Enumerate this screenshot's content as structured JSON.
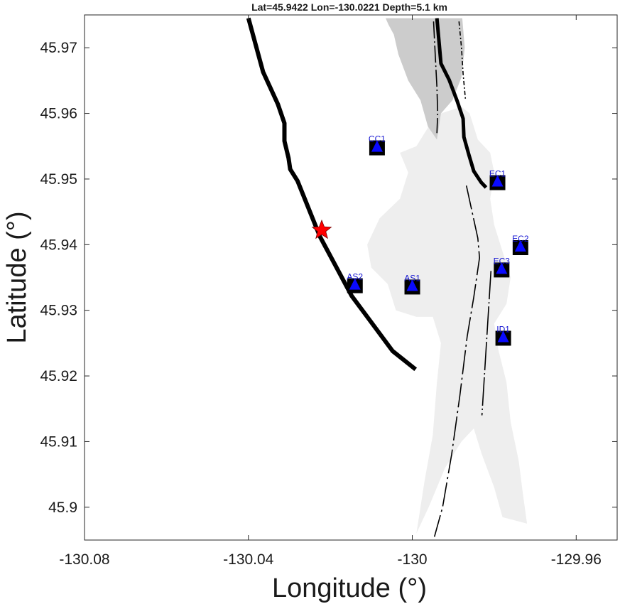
{
  "title": "Lat=45.9422  Lon=-130.0221  Depth=5.1 km",
  "axes": {
    "xlabel": "Longitude (°)",
    "ylabel": "Latitude (°)",
    "xlim": [
      -130.08,
      -129.95
    ],
    "ylim": [
      45.895,
      45.975
    ],
    "xticks": [
      -130.08,
      -130.04,
      -130.0,
      -129.96
    ],
    "xtick_labels": [
      "-130.08",
      "-130.04",
      "-130",
      "-129.96"
    ],
    "yticks": [
      45.9,
      45.91,
      45.92,
      45.93,
      45.94,
      45.95,
      45.96,
      45.97
    ],
    "ytick_labels": [
      "45.9",
      "45.91",
      "45.92",
      "45.93",
      "45.94",
      "45.95",
      "45.96",
      "45.97"
    ]
  },
  "colors": {
    "caldera_rim": "#000000",
    "lava_flow_light": "#eeeeee",
    "lava_flow_dark": "#cccccc",
    "fissure": "#000000",
    "station_marker": "#0a0aff",
    "station_box": "#000000",
    "station_label": "#1414d2",
    "epicenter_star": "#ff0000"
  },
  "epicenter": {
    "lat": 45.9422,
    "lon": -130.0221,
    "depth_km": 5.1,
    "icon": "red-star-icon"
  },
  "stations": [
    {
      "name": "CC1",
      "lon": -130.0086,
      "lat": 45.9548
    },
    {
      "name": "EC1",
      "lon": -129.9792,
      "lat": 45.9495
    },
    {
      "name": "EC2",
      "lon": -129.9736,
      "lat": 45.9396
    },
    {
      "name": "EC3",
      "lon": -129.9782,
      "lat": 45.9362
    },
    {
      "name": "AS2",
      "lon": -130.014,
      "lat": 45.9338
    },
    {
      "name": "AS1",
      "lon": -130.0,
      "lat": 45.9336
    },
    {
      "name": "ID1",
      "lon": -129.9778,
      "lat": 45.9258
    }
  ],
  "features": {
    "caldera_rim_west": [
      [
        -130.04,
        45.9745
      ],
      [
        -130.0364,
        45.9663
      ],
      [
        -130.0328,
        45.9614
      ],
      [
        -130.0312,
        45.9585
      ],
      [
        -130.0312,
        45.9558
      ],
      [
        -130.0302,
        45.9532
      ],
      [
        -130.0298,
        45.9515
      ],
      [
        -130.028,
        45.9497
      ],
      [
        -130.0226,
        45.9413
      ],
      [
        -130.0148,
        45.9322
      ],
      [
        -130.0048,
        45.9238
      ],
      [
        -129.9992,
        45.921
      ]
    ],
    "caldera_rim_east": [
      [
        -129.994,
        45.9745
      ],
      [
        -129.993,
        45.9676
      ],
      [
        -129.991,
        45.9651
      ],
      [
        -129.989,
        45.9618
      ],
      [
        -129.9876,
        45.9592
      ],
      [
        -129.9874,
        45.9564
      ],
      [
        -129.9862,
        45.9537
      ],
      [
        -129.985,
        45.9512
      ],
      [
        -129.9832,
        45.9495
      ],
      [
        -129.982,
        45.9487
      ]
    ],
    "fissure_west": [
      [
        -129.9868,
        45.949
      ],
      [
        -129.984,
        45.941
      ],
      [
        -129.9836,
        45.938
      ],
      [
        -129.985,
        45.932
      ],
      [
        -129.9866,
        45.926
      ],
      [
        -129.9884,
        45.917
      ],
      [
        -129.9904,
        45.908
      ],
      [
        -129.9926,
        45.9
      ],
      [
        -129.9946,
        45.8955
      ]
    ],
    "fissure_east": [
      [
        -129.9808,
        45.936
      ],
      [
        -129.9816,
        45.928
      ],
      [
        -129.983,
        45.914
      ]
    ],
    "fissure_north_1": [
      [
        -129.9948,
        45.974
      ],
      [
        -129.9944,
        45.969
      ],
      [
        -129.994,
        45.964
      ],
      [
        -129.9938,
        45.96
      ],
      [
        -129.994,
        45.957
      ]
    ],
    "fissure_north_2": [
      [
        -129.9886,
        45.974
      ],
      [
        -129.988,
        45.97
      ],
      [
        -129.9876,
        45.966
      ],
      [
        -129.987,
        45.962
      ]
    ],
    "lava_flow_dark": [
      [
        -130.0065,
        45.9745
      ],
      [
        -129.9878,
        45.9745
      ],
      [
        -129.9872,
        45.97
      ],
      [
        -129.988,
        45.9655
      ],
      [
        -129.9902,
        45.962
      ],
      [
        -129.993,
        45.96
      ],
      [
        -129.994,
        45.956
      ],
      [
        -129.9962,
        45.958
      ],
      [
        -129.998,
        45.962
      ],
      [
        -130.001,
        45.965
      ],
      [
        -130.0034,
        45.969
      ],
      [
        -130.0045,
        45.972
      ],
      [
        -130.0058,
        45.9735
      ]
    ],
    "lava_flow_light": [
      [
        -129.993,
        45.96
      ],
      [
        -129.988,
        45.961
      ],
      [
        -129.986,
        45.96
      ],
      [
        -129.984,
        45.956
      ],
      [
        -129.981,
        45.954
      ],
      [
        -129.98,
        45.951
      ],
      [
        -129.981,
        45.947
      ],
      [
        -129.98,
        45.943
      ],
      [
        -129.978,
        45.939
      ],
      [
        -129.976,
        45.935
      ],
      [
        -129.977,
        45.931
      ],
      [
        -129.98,
        45.928
      ],
      [
        -129.979,
        45.924
      ],
      [
        -129.977,
        45.919
      ],
      [
        -129.976,
        45.913
      ],
      [
        -129.974,
        45.907
      ],
      [
        -129.973,
        45.902
      ],
      [
        -129.972,
        45.8975
      ],
      [
        -129.978,
        45.8985
      ],
      [
        -129.98,
        45.903
      ],
      [
        -129.983,
        45.908
      ],
      [
        -129.985,
        45.912
      ],
      [
        -129.988,
        45.91
      ],
      [
        -129.992,
        45.906
      ],
      [
        -129.996,
        45.9
      ],
      [
        -129.999,
        45.896
      ],
      [
        -129.997,
        45.904
      ],
      [
        -129.995,
        45.911
      ],
      [
        -129.994,
        45.919
      ],
      [
        -129.993,
        45.925
      ],
      [
        -129.995,
        45.929
      ],
      [
        -129.999,
        45.929
      ],
      [
        -130.004,
        45.93
      ],
      [
        -130.006,
        45.934
      ],
      [
        -130.01,
        45.9365
      ],
      [
        -130.011,
        45.94
      ],
      [
        -130.008,
        45.944
      ],
      [
        -130.003,
        45.947
      ],
      [
        -130.001,
        45.951
      ],
      [
        -130.003,
        45.954
      ],
      [
        -129.999,
        45.955
      ],
      [
        -129.996,
        45.958
      ]
    ]
  }
}
